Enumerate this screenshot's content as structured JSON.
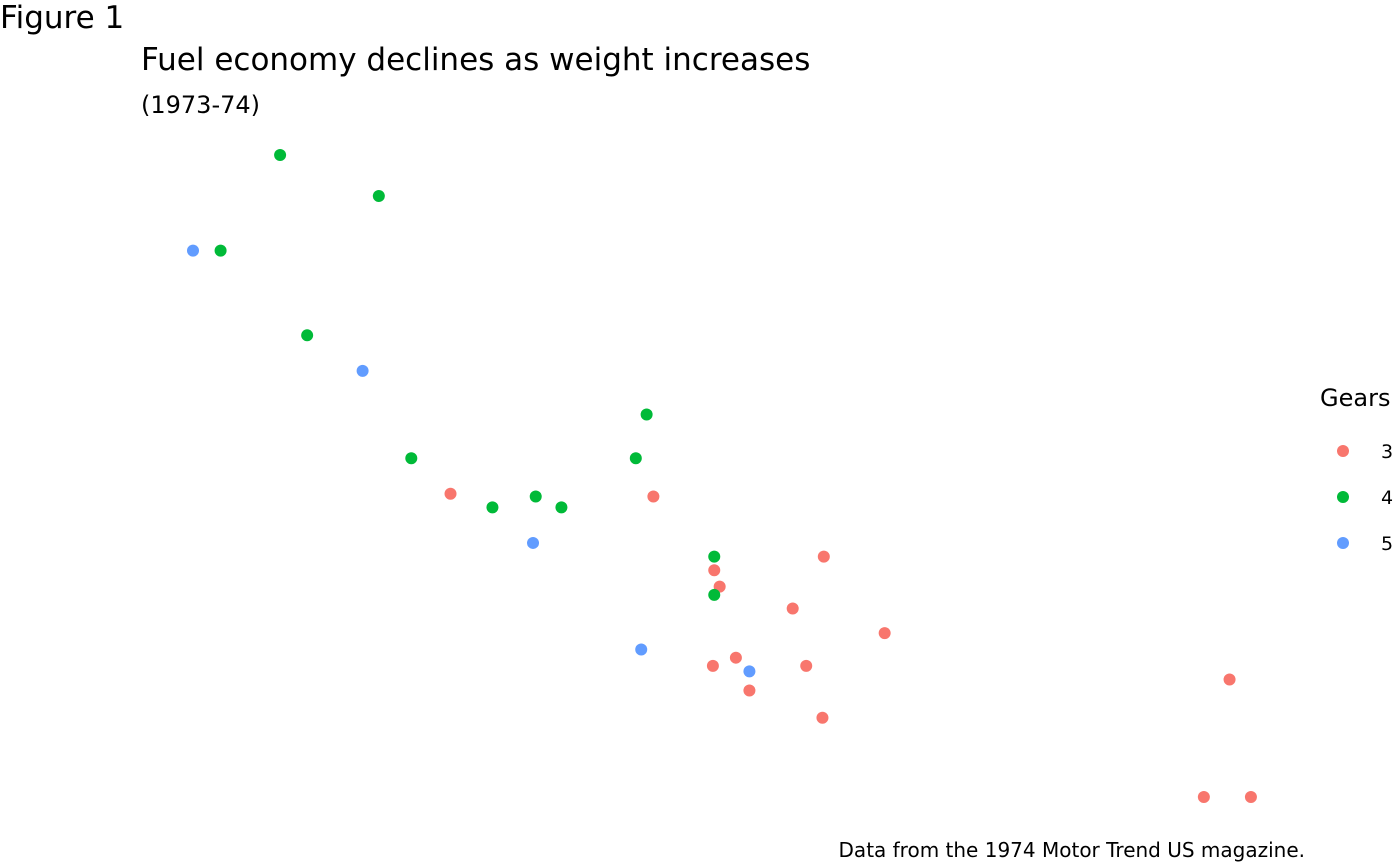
{
  "figure_label": "Figure 1",
  "chart_data": {
    "type": "scatter",
    "title": "Fuel economy declines as weight increases",
    "subtitle": "(1973-74)",
    "caption": "Data from the 1974 Motor Trend US magazine.",
    "xlabel": "",
    "ylabel": "",
    "axes_visible": false,
    "grid": false,
    "legend": {
      "title": "Gears",
      "placement": "right",
      "entries": [
        "3",
        "4",
        "5"
      ]
    },
    "colors": {
      "3": "#F8766D",
      "4": "#00BA38",
      "5": "#619CFF"
    },
    "points": [
      {
        "x": 2.62,
        "y": 21.0,
        "gear": "4"
      },
      {
        "x": 2.875,
        "y": 21.0,
        "gear": "4"
      },
      {
        "x": 2.32,
        "y": 22.8,
        "gear": "4"
      },
      {
        "x": 3.215,
        "y": 21.4,
        "gear": "3"
      },
      {
        "x": 3.44,
        "y": 18.7,
        "gear": "3"
      },
      {
        "x": 3.46,
        "y": 18.1,
        "gear": "3"
      },
      {
        "x": 3.57,
        "y": 14.3,
        "gear": "3"
      },
      {
        "x": 3.19,
        "y": 24.4,
        "gear": "4"
      },
      {
        "x": 3.15,
        "y": 22.8,
        "gear": "4"
      },
      {
        "x": 3.44,
        "y": 19.2,
        "gear": "4"
      },
      {
        "x": 3.44,
        "y": 17.8,
        "gear": "4"
      },
      {
        "x": 4.07,
        "y": 16.4,
        "gear": "3"
      },
      {
        "x": 3.73,
        "y": 17.3,
        "gear": "3"
      },
      {
        "x": 3.78,
        "y": 15.2,
        "gear": "3"
      },
      {
        "x": 5.25,
        "y": 10.4,
        "gear": "3"
      },
      {
        "x": 5.424,
        "y": 10.4,
        "gear": "3"
      },
      {
        "x": 5.345,
        "y": 14.7,
        "gear": "3"
      },
      {
        "x": 2.2,
        "y": 32.4,
        "gear": "4"
      },
      {
        "x": 1.615,
        "y": 30.4,
        "gear": "4"
      },
      {
        "x": 1.835,
        "y": 33.9,
        "gear": "4"
      },
      {
        "x": 2.465,
        "y": 21.5,
        "gear": "3"
      },
      {
        "x": 3.52,
        "y": 15.5,
        "gear": "3"
      },
      {
        "x": 3.435,
        "y": 15.2,
        "gear": "3"
      },
      {
        "x": 3.84,
        "y": 13.3,
        "gear": "3"
      },
      {
        "x": 3.845,
        "y": 19.2,
        "gear": "3"
      },
      {
        "x": 1.935,
        "y": 27.3,
        "gear": "4"
      },
      {
        "x": 2.14,
        "y": 26.0,
        "gear": "5"
      },
      {
        "x": 1.513,
        "y": 30.4,
        "gear": "5"
      },
      {
        "x": 3.17,
        "y": 15.8,
        "gear": "5"
      },
      {
        "x": 2.77,
        "y": 19.7,
        "gear": "5"
      },
      {
        "x": 3.57,
        "y": 15.0,
        "gear": "5"
      },
      {
        "x": 2.78,
        "y": 21.4,
        "gear": "4"
      }
    ]
  }
}
